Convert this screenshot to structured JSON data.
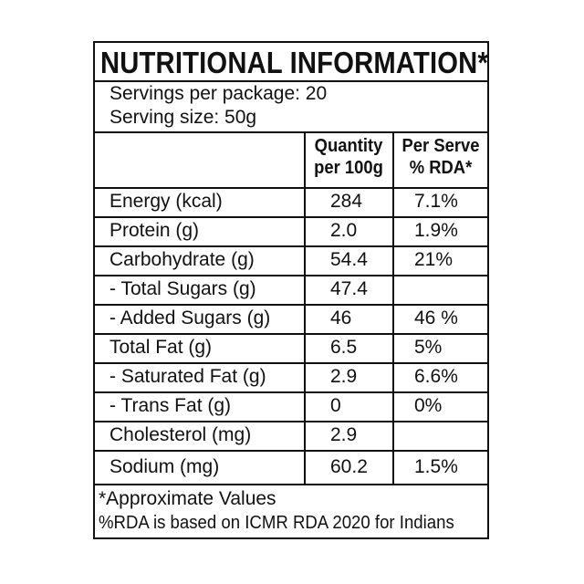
{
  "panel": {
    "title": "NUTRITIONAL INFORMATION*",
    "servings_per_package": "Servings per package: 20",
    "serving_size": "Serving size: 50g"
  },
  "columns": {
    "quantity_line1": "Quantity",
    "quantity_line2": "per 100g",
    "rda_line1": "Per Serve",
    "rda_line2": "% RDA*"
  },
  "rows": [
    {
      "name": "Energy (kcal)",
      "quantity": "284",
      "rda": "7.1%"
    },
    {
      "name": "Protein (g)",
      "quantity": "2.0",
      "rda": "1.9%"
    },
    {
      "name": "Carbohydrate (g)",
      "quantity": "54.4",
      "rda": "21%"
    },
    {
      "name": "- Total Sugars (g)",
      "quantity": "47.4",
      "rda": ""
    },
    {
      "name": "- Added Sugars (g)",
      "quantity": "46",
      "rda": "46 %"
    },
    {
      "name": "Total Fat (g)",
      "quantity": "6.5",
      "rda": "5%"
    },
    {
      "name": "- Saturated Fat (g)",
      "quantity": "2.9",
      "rda": "6.6%"
    },
    {
      "name": "- Trans Fat (g)",
      "quantity": "0",
      "rda": "0%"
    },
    {
      "name": "Cholesterol (mg)",
      "quantity": "2.9",
      "rda": ""
    },
    {
      "name": "Sodium (mg)",
      "quantity": "60.2",
      "rda": "1.5%"
    }
  ],
  "footnotes": {
    "approx": "*Approximate Values",
    "rda_basis": "%RDA is based on ICMR RDA 2020 for Indians"
  }
}
